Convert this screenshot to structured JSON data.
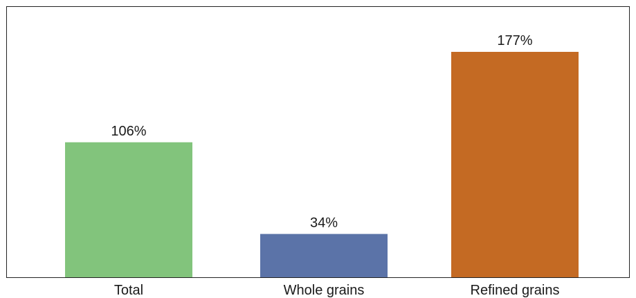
{
  "chart_data": {
    "type": "bar",
    "title": "",
    "xlabel": "",
    "ylabel": "",
    "categories": [
      "Total",
      "Whole grains",
      "Refined grains"
    ],
    "values": [
      106,
      34,
      177
    ],
    "value_labels": [
      "106%",
      "34%",
      "177%"
    ],
    "unit": "%",
    "ylim": [
      0,
      200
    ],
    "grid": false,
    "legend": "none",
    "colors": [
      "#82c47c",
      "#5b73a8",
      "#c46a23"
    ]
  }
}
